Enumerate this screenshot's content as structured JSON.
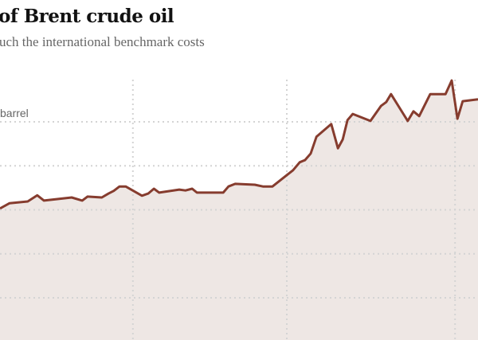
{
  "chart_data": {
    "type": "area",
    "title": "of Brent crude oil",
    "subtitle": "uch the international benchmark costs",
    "ylabel": "barrel",
    "xlabel": "",
    "ylim": [
      -9.6,
      67.7
    ],
    "xlim": [
      0,
      100
    ],
    "grid": true,
    "y_gridlines": [
      0,
      10,
      20,
      30,
      40
    ],
    "x_gridlines": [
      27.8,
      60,
      95.2
    ],
    "line_color": "#863c2e",
    "fill_color": "#ece4e1",
    "series": [
      {
        "name": "Brent crude",
        "x": [
          0,
          2,
          5.8,
          7.8,
          9.2,
          15,
          17.2,
          18.3,
          21.3,
          22.7,
          23.8,
          25,
          26.3,
          29.7,
          31,
          32.2,
          33.3,
          37.5,
          38.8,
          40.2,
          41.2,
          46.7,
          47.8,
          49.2,
          53.3,
          55,
          57,
          60,
          61.3,
          62.7,
          63.8,
          65,
          66.2,
          69.3,
          70.7,
          71.7,
          72.7,
          73.8,
          77.5,
          79.7,
          80.8,
          81.8,
          85.3,
          86.5,
          87.7,
          90,
          93.2,
          94.5,
          95.7,
          96.8,
          100
        ],
        "values": [
          20.3,
          21.5,
          21.9,
          23.3,
          22.1,
          22.8,
          22.1,
          23.0,
          22.8,
          23.7,
          24.3,
          25.3,
          25.3,
          23.2,
          23.7,
          24.8,
          23.9,
          24.6,
          24.4,
          24.8,
          23.9,
          23.9,
          25.3,
          25.9,
          25.7,
          25.3,
          25.3,
          27.9,
          29.0,
          30.8,
          31.3,
          32.8,
          36.6,
          39.5,
          34.0,
          36.0,
          40.4,
          41.8,
          40.2,
          43.6,
          44.5,
          46.3,
          40.2,
          42.4,
          41.3,
          46.3,
          46.3,
          49.4,
          40.7,
          44.7,
          45.1
        ]
      }
    ]
  }
}
